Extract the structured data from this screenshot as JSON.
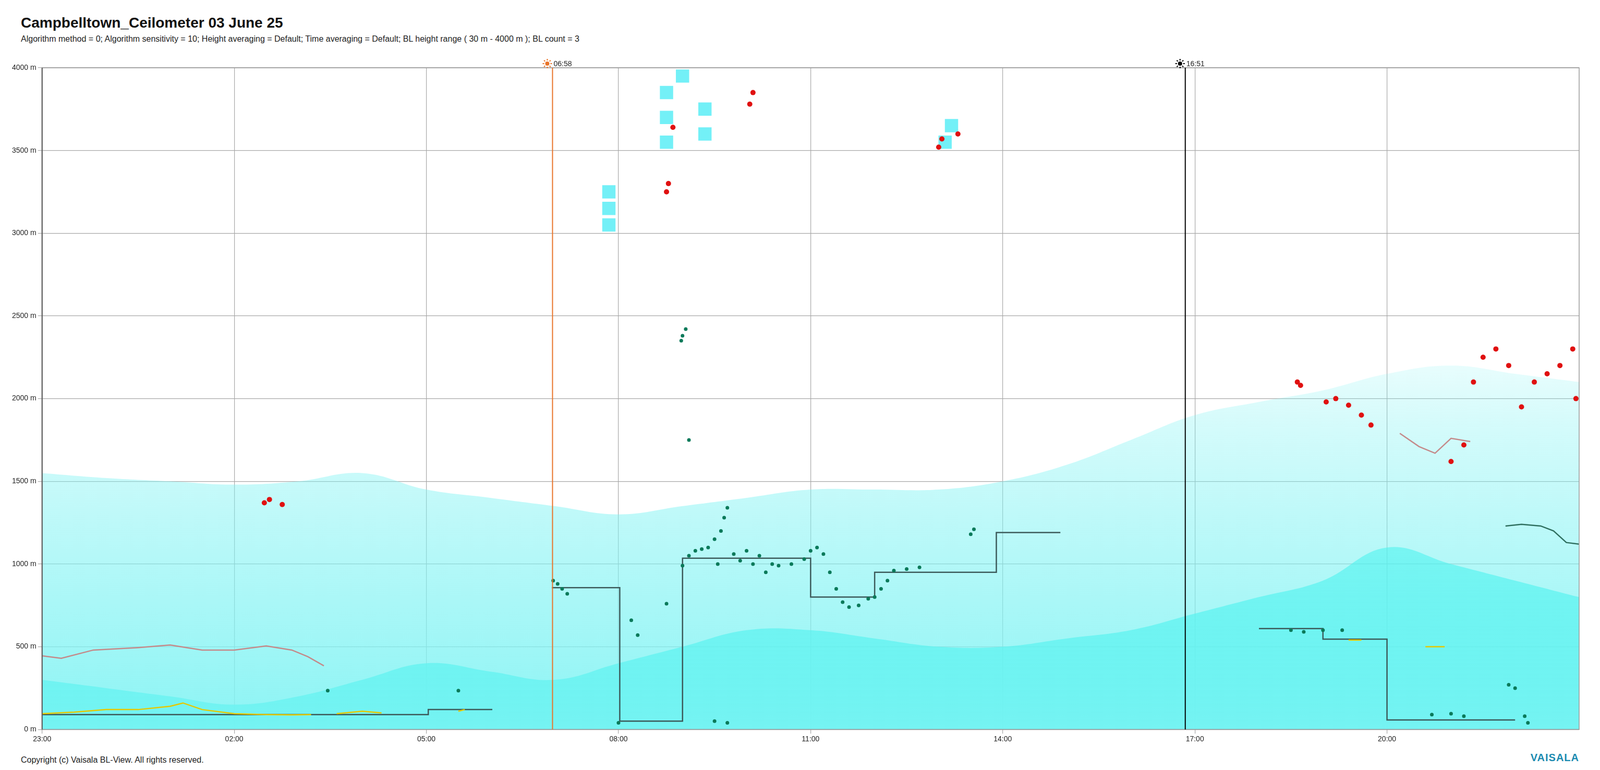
{
  "chart_data": {
    "type": "line",
    "title": "Campbelltown_Ceilometer 03 June 25",
    "subtitle": "Algorithm method = 0; Algorithm sensitivity = 10; Height averaging = Default; Time averaging = Default; BL height range ( 30 m - 4000 m ); BL count = 3",
    "footer": "Copyright (c) Vaisala BL-View. All rights reserved.",
    "logo": "VAISALA",
    "xlim": [
      0,
      24
    ],
    "xticks": [
      {
        "value": 0,
        "label": "23:00"
      },
      {
        "value": 3,
        "label": "02:00"
      },
      {
        "value": 6,
        "label": "05:00"
      },
      {
        "value": 9,
        "label": "08:00"
      },
      {
        "value": 12,
        "label": "11:00"
      },
      {
        "value": 15,
        "label": "14:00"
      },
      {
        "value": 18,
        "label": "17:00"
      },
      {
        "value": 21,
        "label": "20:00"
      }
    ],
    "ylim": [
      0,
      4000
    ],
    "yticks": [
      {
        "value": 0,
        "label": "0 m"
      },
      {
        "value": 500,
        "label": "500 m"
      },
      {
        "value": 1000,
        "label": "1000 m"
      },
      {
        "value": 1500,
        "label": "1500 m"
      },
      {
        "value": 2000,
        "label": "2000 m"
      },
      {
        "value": 2500,
        "label": "2500 m"
      },
      {
        "value": 3000,
        "label": "3000 m"
      },
      {
        "value": 3500,
        "label": "3500 m"
      },
      {
        "value": 4000,
        "label": "4000 m"
      }
    ],
    "grid": true,
    "annotations": [
      {
        "x": 7.97,
        "label": "06:58",
        "color": "#e8742a"
      },
      {
        "x": 17.85,
        "label": "16:51",
        "color": "#000000"
      }
    ],
    "series": [
      {
        "type": "area",
        "color": "#7ff3f3",
        "x": [
          0,
          1,
          2,
          3,
          4,
          5,
          6,
          7,
          8,
          9,
          10,
          11,
          12,
          13,
          14,
          15,
          16,
          17,
          18,
          19,
          20,
          21,
          22,
          23,
          24
        ],
        "values": [
          1550,
          1520,
          1500,
          1480,
          1500,
          1550,
          1450,
          1400,
          1350,
          1300,
          1350,
          1400,
          1450,
          1450,
          1450,
          1500,
          1600,
          1750,
          1900,
          1980,
          2050,
          2150,
          2200,
          2150,
          2100
        ]
      },
      {
        "type": "area",
        "color": "#00f2e8",
        "x": [
          0,
          1,
          2,
          3,
          4,
          5,
          6,
          7,
          8,
          9,
          10,
          11,
          12,
          13,
          14,
          15,
          16,
          17,
          18,
          19,
          20,
          21,
          22,
          23,
          24
        ],
        "values": [
          300,
          250,
          200,
          150,
          200,
          300,
          400,
          350,
          300,
          400,
          500,
          600,
          600,
          550,
          500,
          500,
          550,
          600,
          700,
          800,
          900,
          1100,
          1000,
          900,
          800
        ]
      },
      {
        "type": "scatter",
        "marker": "rect",
        "color": "#00e4f0",
        "x": [
          8.85,
          8.85,
          8.85,
          9.75,
          9.75,
          9.75,
          10.0,
          10.35,
          10.35,
          14.1,
          14.2
        ],
        "values": [
          3050,
          3150,
          3250,
          3550,
          3700,
          3850,
          3950,
          3600,
          3750,
          3550,
          3650
        ]
      },
      {
        "type": "line",
        "color": "#c48a8a",
        "x": [
          0,
          0.3,
          0.8,
          1.5,
          2.0,
          2.5,
          3.0,
          3.5,
          3.9,
          4.15,
          4.4,
          4.6,
          21.2,
          21.5,
          21.75,
          22.0,
          22.3
        ],
        "values": [
          445,
          430,
          480,
          495,
          510,
          480,
          480,
          505,
          480,
          440,
          385,
          null,
          1790,
          1710,
          1670,
          1760,
          1740
        ]
      },
      {
        "type": "line",
        "color": "#e6c800",
        "x": [
          0,
          0.5,
          1.0,
          1.5,
          2.0,
          2.2,
          2.5,
          3.0,
          3.5,
          3.9,
          4.2,
          4.3,
          4.6,
          5.0,
          5.3,
          5.5,
          6.5,
          6.6,
          7.0,
          20.4,
          20.6,
          20.8,
          21.6,
          21.9
        ],
        "values": [
          95,
          105,
          120,
          120,
          140,
          160,
          120,
          95,
          90,
          88,
          90,
          null,
          95,
          110,
          100,
          null,
          110,
          120,
          null,
          540,
          540,
          null,
          500,
          500
        ]
      },
      {
        "type": "line",
        "color": "#2f6f5f",
        "x": [
          22.85,
          23.1,
          23.4,
          23.6,
          23.8,
          24
        ],
        "values": [
          1230,
          1240,
          1230,
          1200,
          1130,
          1120
        ]
      },
      {
        "type": "line",
        "color": "#3c5a5a",
        "x": [
          0,
          6.03,
          6.03,
          7.03,
          7.5,
          7.96,
          9.02,
          9.02,
          10.0,
          10.0,
          12.0,
          12.0,
          13.0,
          13.0,
          14.9,
          14.9,
          15.9,
          17.0,
          19.0,
          20.0,
          20.0,
          21.0,
          21.0,
          23.0
        ],
        "values": [
          90,
          90,
          120,
          120,
          null,
          857,
          857,
          50,
          50,
          1035,
          1035,
          800,
          800,
          950,
          950,
          1190,
          1190,
          null,
          610,
          610,
          546,
          546,
          57,
          57
        ]
      },
      {
        "type": "scatter",
        "marker": "circle",
        "color": "#0b7a5a",
        "x": [
          4.46,
          6.5,
          7.98,
          8.05,
          8.12,
          8.2,
          9.2,
          9.3,
          9.75,
          10.0,
          10.1,
          10.2,
          10.3,
          10.4,
          10.5,
          10.6,
          10.65,
          10.7,
          10.55,
          10.8,
          10.9,
          11.0,
          11.1,
          11.2,
          11.3,
          11.4,
          11.5,
          11.7,
          11.9,
          12.0,
          12.1,
          12.2,
          12.3,
          12.4,
          12.5,
          12.6,
          12.75,
          12.9,
          13.0,
          13.1,
          13.2,
          13.3,
          13.5,
          13.7,
          14.5,
          14.55,
          10.1,
          9.98,
          10.0,
          10.05,
          10.5,
          10.7,
          9.0,
          19.5,
          19.7,
          20.0,
          20.3,
          21.7,
          22.0,
          22.2,
          22.9,
          23.0,
          23.15,
          23.2
        ],
        "values": [
          235,
          235,
          900,
          880,
          850,
          820,
          660,
          570,
          760,
          990,
          1050,
          1080,
          1090,
          1100,
          1150,
          1200,
          1280,
          1340,
          1000,
          1060,
          1020,
          1080,
          1000,
          1050,
          950,
          1000,
          990,
          1000,
          1030,
          1080,
          1100,
          1060,
          950,
          850,
          770,
          740,
          750,
          790,
          800,
          850,
          900,
          960,
          970,
          980,
          1180,
          1210,
          1750,
          2350,
          2380,
          2420,
          50,
          40,
          40,
          600,
          590,
          600,
          600,
          90,
          95,
          80,
          270,
          250,
          80,
          40
        ]
      },
      {
        "type": "scatter",
        "marker": "circle",
        "color": "#e01010",
        "x": [
          3.47,
          3.55,
          3.75,
          9.75,
          9.78,
          9.85,
          11.05,
          11.1,
          14.0,
          14.05,
          14.3,
          19.6,
          19.65,
          20.05,
          20.2,
          20.4,
          20.6,
          20.75,
          22.0,
          22.2,
          22.35,
          22.5,
          22.7,
          22.9,
          23.1,
          23.3,
          23.5,
          23.7,
          23.9,
          23.95
        ],
        "values": [
          1370,
          1390,
          1360,
          3250,
          3300,
          3640,
          3780,
          3850,
          3520,
          3570,
          3600,
          2100,
          2080,
          1980,
          2000,
          1960,
          1900,
          1840,
          1620,
          1720,
          2100,
          2250,
          2300,
          2200,
          1950,
          2100,
          2150,
          2200,
          2300,
          2000
        ]
      }
    ]
  }
}
